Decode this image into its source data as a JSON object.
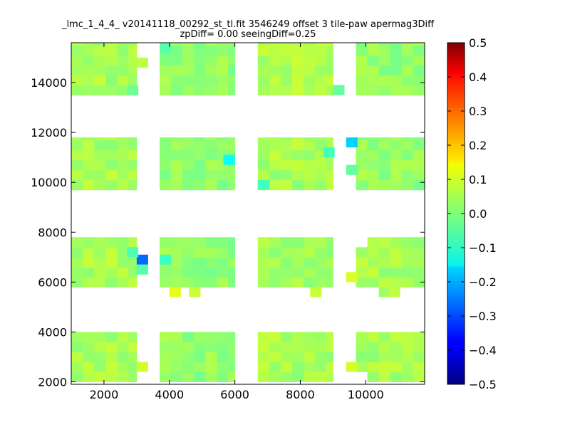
{
  "chart_data": {
    "type": "heatmap",
    "title_line1": "_lmc_1_4_4_ v20141118_00292_st_tl.fit 3546249 offset 3 tile-paw apermag3Diff",
    "title_line2": "zpDiff= 0.00 seeingDiff=0.25",
    "xlim": [
      1000,
      11800
    ],
    "ylim": [
      1900,
      15600
    ],
    "x_ticks": [
      2000,
      4000,
      6000,
      8000,
      10000
    ],
    "y_ticks": [
      2000,
      4000,
      6000,
      8000,
      10000,
      12000,
      14000
    ],
    "x_tick_labels": [
      "2000",
      "4000",
      "6000",
      "8000",
      "10000"
    ],
    "y_tick_labels": [
      "2000",
      "4000",
      "6000",
      "8000",
      "10000",
      "12000",
      "14000"
    ],
    "colormap": "jet",
    "colorbar": {
      "min": -0.5,
      "max": 0.5,
      "ticks": [
        0.5,
        0.4,
        0.3,
        0.2,
        0.1,
        0.0,
        -0.1,
        -0.2,
        -0.3,
        -0.4,
        -0.5
      ],
      "tick_labels": [
        "0.5",
        "0.4",
        "0.3",
        "0.2",
        "0.1",
        "0.0",
        "−0.1",
        "−0.2",
        "−0.3",
        "−0.4",
        "−0.5"
      ]
    },
    "grid": false,
    "cell_size": [
      350,
      400
    ],
    "blocks": [
      {
        "x0": 1000,
        "x1": 3000,
        "y0": 2000,
        "y1": 4000,
        "value": 0.04
      },
      {
        "x0": 3700,
        "x1": 6000,
        "y0": 2000,
        "y1": 4000,
        "value": 0.02
      },
      {
        "x0": 6700,
        "x1": 9000,
        "y0": 2000,
        "y1": 4000,
        "value": 0.04
      },
      {
        "x0": 9700,
        "x1": 11800,
        "y0": 2000,
        "y1": 4000,
        "value": 0.04
      },
      {
        "x0": 1000,
        "x1": 3000,
        "y0": 5800,
        "y1": 7800,
        "value": 0.04
      },
      {
        "x0": 3700,
        "x1": 6000,
        "y0": 5800,
        "y1": 7800,
        "value": 0.02
      },
      {
        "x0": 6700,
        "x1": 9000,
        "y0": 5800,
        "y1": 7800,
        "value": 0.03
      },
      {
        "x0": 9700,
        "x1": 11800,
        "y0": 5800,
        "y1": 7800,
        "value": 0.04
      },
      {
        "x0": 1000,
        "x1": 3000,
        "y0": 9700,
        "y1": 11800,
        "value": 0.04
      },
      {
        "x0": 3700,
        "x1": 6000,
        "y0": 9700,
        "y1": 11800,
        "value": 0.02
      },
      {
        "x0": 6700,
        "x1": 9000,
        "y0": 9700,
        "y1": 11800,
        "value": 0.04
      },
      {
        "x0": 9700,
        "x1": 11800,
        "y0": 9700,
        "y1": 11800,
        "value": 0.02
      },
      {
        "x0": 1000,
        "x1": 3000,
        "y0": 13500,
        "y1": 15600,
        "value": 0.04
      },
      {
        "x0": 3700,
        "x1": 6000,
        "y0": 13500,
        "y1": 15600,
        "value": 0.02
      },
      {
        "x0": 6700,
        "x1": 9000,
        "y0": 13500,
        "y1": 15600,
        "value": 0.05
      },
      {
        "x0": 9700,
        "x1": 11800,
        "y0": 13500,
        "y1": 15600,
        "value": 0.02
      }
    ],
    "outlier_cells": [
      {
        "x": 3000,
        "y": 2400,
        "value": 0.08
      },
      {
        "x": 9400,
        "y": 2400,
        "value": 0.08
      },
      {
        "x": 3000,
        "y": 6700,
        "value": -0.27
      },
      {
        "x": 3000,
        "y": 6300,
        "value": -0.04
      },
      {
        "x": 2700,
        "y": 7000,
        "value": -0.05
      },
      {
        "x": 3700,
        "y": 6700,
        "value": -0.07
      },
      {
        "x": 4000,
        "y": 5400,
        "value": 0.1
      },
      {
        "x": 4600,
        "y": 5400,
        "value": 0.07
      },
      {
        "x": 5650,
        "y": 10700,
        "value": -0.12
      },
      {
        "x": 9400,
        "y": 11400,
        "value": -0.17
      },
      {
        "x": 8700,
        "y": 11000,
        "value": -0.06
      },
      {
        "x": 9400,
        "y": 10300,
        "value": -0.03
      },
      {
        "x": 6700,
        "y": 9700,
        "value": -0.06
      },
      {
        "x": 8300,
        "y": 5400,
        "value": 0.07
      },
      {
        "x": 9400,
        "y": 6000,
        "value": 0.09
      },
      {
        "x": 10400,
        "y": 5400,
        "value": 0.03
      },
      {
        "x": 10700,
        "y": 5400,
        "value": 0.06
      },
      {
        "x": 3000,
        "y": 14600,
        "value": 0.06
      },
      {
        "x": 9000,
        "y": 13500,
        "value": -0.03
      },
      {
        "x": 3700,
        "y": 15200,
        "value": -0.04
      },
      {
        "x": 2700,
        "y": 13500,
        "value": -0.02
      }
    ],
    "missing_cells": [
      {
        "x": 3000,
        "y": 13900
      },
      {
        "x": 3000,
        "y": 14200
      },
      {
        "x": 2700,
        "y": 14600
      },
      {
        "x": 2700,
        "y": 15200
      },
      {
        "x": 8400,
        "y": 11400
      },
      {
        "x": 8700,
        "y": 11400
      },
      {
        "x": 3000,
        "y": 7400
      },
      {
        "x": 2700,
        "y": 6300
      },
      {
        "x": 2700,
        "y": 6700
      },
      {
        "x": 8700,
        "y": 5800
      },
      {
        "x": 8700,
        "y": 6300
      },
      {
        "x": 8700,
        "y": 6700
      },
      {
        "x": 9000,
        "y": 7400
      },
      {
        "x": 9000,
        "y": 7000
      },
      {
        "x": 8700,
        "y": 7000
      },
      {
        "x": 9700,
        "y": 7400
      },
      {
        "x": 11400,
        "y": 7400
      },
      {
        "x": 11400,
        "y": 7000
      },
      {
        "x": 11400,
        "y": 5800
      },
      {
        "x": 9000,
        "y": 2400
      },
      {
        "x": 9000,
        "y": 2000
      },
      {
        "x": 3000,
        "y": 2000
      },
      {
        "x": 9700,
        "y": 2000
      },
      {
        "x": 11400,
        "y": 2000
      },
      {
        "x": 11400,
        "y": 11400
      },
      {
        "x": 9000,
        "y": 11400
      },
      {
        "x": 9000,
        "y": 9700
      },
      {
        "x": 3000,
        "y": 9700
      },
      {
        "x": 3000,
        "y": 11400
      },
      {
        "x": 11400,
        "y": 15200
      },
      {
        "x": 8700,
        "y": 2000
      }
    ]
  }
}
